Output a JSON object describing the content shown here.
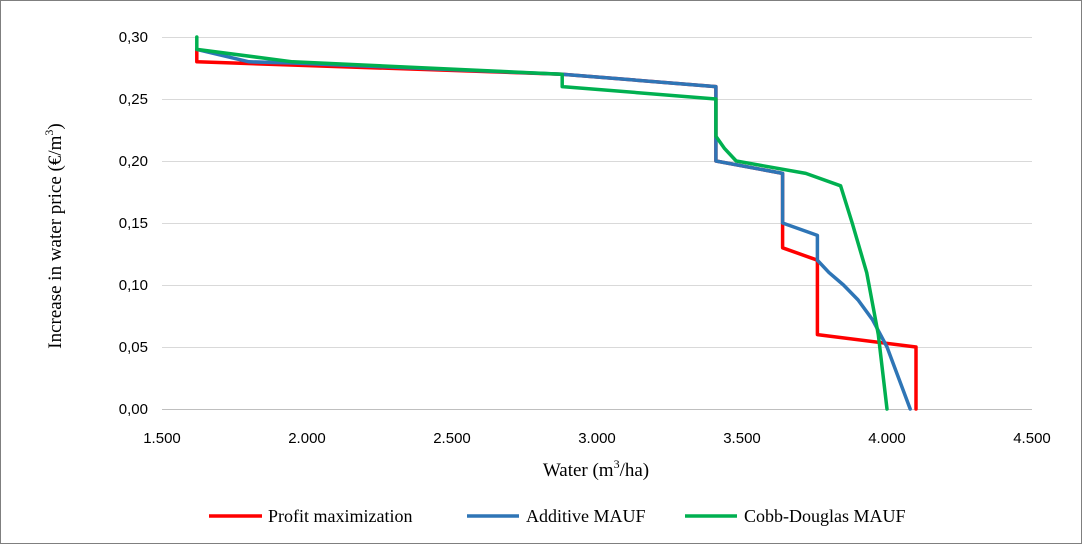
{
  "chart_data": {
    "type": "line",
    "title": "",
    "xlabel": {
      "pre": "Water (m",
      "sup": "3",
      "post": "/ha)"
    },
    "ylabel": {
      "pre": "Increase in water price (€/m",
      "sup": "3",
      "post": ")"
    },
    "xlim": [
      1500,
      4500
    ],
    "ylim": [
      0,
      0.3
    ],
    "xticks": [
      1500,
      2000,
      2500,
      3000,
      3500,
      4000,
      4500
    ],
    "xtick_labels": [
      "1.500",
      "2.000",
      "2.500",
      "3.000",
      "3.500",
      "4.000",
      "4.500"
    ],
    "yticks": [
      0,
      0.05,
      0.1,
      0.15,
      0.2,
      0.25,
      0.3
    ],
    "ytick_labels": [
      "0,00",
      "0,05",
      "0,10",
      "0,15",
      "0,20",
      "0,25",
      "0,30"
    ],
    "grid": "horizontal",
    "legend_position": "bottom",
    "series": [
      {
        "name": "Profit maximization",
        "color": "#ff0000",
        "points": [
          [
            1620,
            0.29
          ],
          [
            1620,
            0.28
          ],
          [
            2880,
            0.27
          ],
          [
            3410,
            0.26
          ],
          [
            3410,
            0.2
          ],
          [
            3640,
            0.19
          ],
          [
            3640,
            0.13
          ],
          [
            3760,
            0.12
          ],
          [
            3760,
            0.06
          ],
          [
            4100,
            0.05
          ],
          [
            4100,
            0.0
          ]
        ]
      },
      {
        "name": "Additive MAUF",
        "color": "#2e75b6",
        "points": [
          [
            1620,
            0.29
          ],
          [
            1800,
            0.28
          ],
          [
            1950,
            0.279
          ],
          [
            2880,
            0.27
          ],
          [
            3410,
            0.26
          ],
          [
            3410,
            0.2
          ],
          [
            3640,
            0.19
          ],
          [
            3640,
            0.15
          ],
          [
            3760,
            0.14
          ],
          [
            3760,
            0.12
          ],
          [
            3800,
            0.11
          ],
          [
            3850,
            0.1
          ],
          [
            3900,
            0.088
          ],
          [
            3950,
            0.072
          ],
          [
            4000,
            0.05
          ],
          [
            4040,
            0.025
          ],
          [
            4080,
            0.0
          ]
        ]
      },
      {
        "name": "Cobb-Douglas MAUF",
        "color": "#00b050",
        "points": [
          [
            1620,
            0.3
          ],
          [
            1620,
            0.29
          ],
          [
            1950,
            0.28
          ],
          [
            2880,
            0.27
          ],
          [
            2880,
            0.26
          ],
          [
            3410,
            0.25
          ],
          [
            3410,
            0.22
          ],
          [
            3440,
            0.21
          ],
          [
            3480,
            0.2
          ],
          [
            3600,
            0.195
          ],
          [
            3720,
            0.19
          ],
          [
            3840,
            0.18
          ],
          [
            3880,
            0.15
          ],
          [
            3930,
            0.11
          ],
          [
            3970,
            0.06
          ],
          [
            4000,
            0.0
          ]
        ]
      }
    ]
  }
}
